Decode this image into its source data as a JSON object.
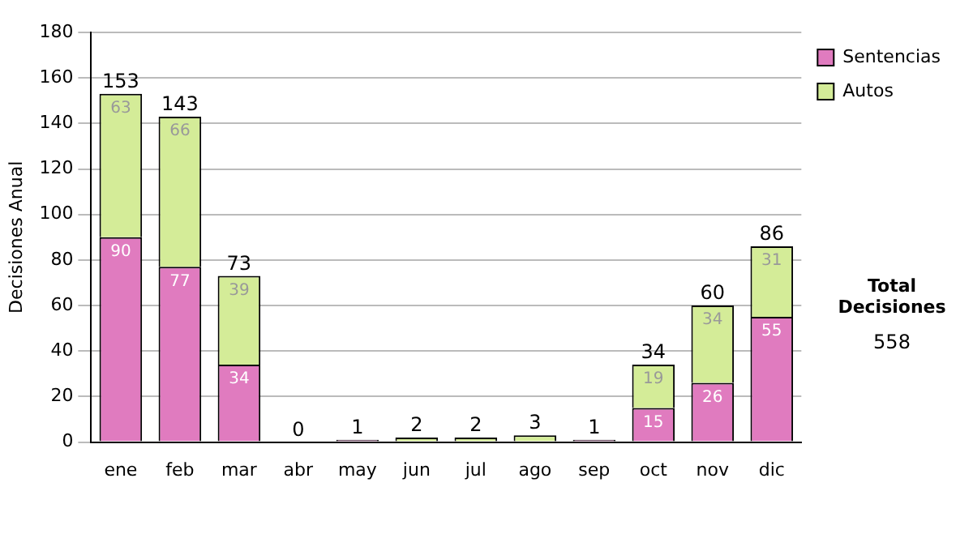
{
  "chart_data": {
    "type": "bar",
    "stacked": true,
    "ylabel": "Decisiones Anual",
    "categories": [
      "ene",
      "feb",
      "mar",
      "abr",
      "may",
      "jun",
      "jul",
      "ago",
      "sep",
      "oct",
      "nov",
      "dic"
    ],
    "series": [
      {
        "name": "Sentencias",
        "color": "#e07bbf",
        "values": [
          90,
          77,
          34,
          0,
          1,
          0,
          0,
          0,
          1,
          15,
          26,
          55
        ],
        "value_labels": [
          "90",
          "77",
          "34",
          null,
          null,
          null,
          null,
          null,
          null,
          "15",
          "26",
          "55"
        ]
      },
      {
        "name": "Autos",
        "color": "#d4ec98",
        "values": [
          63,
          66,
          39,
          0,
          0,
          2,
          2,
          3,
          0,
          19,
          34,
          31
        ],
        "value_labels": [
          "63",
          "66",
          "39",
          null,
          null,
          null,
          null,
          null,
          null,
          "19",
          "34",
          "31"
        ]
      }
    ],
    "totals": [
      "153",
      "143",
      "73",
      "0",
      "1",
      "2",
      "2",
      "3",
      "1",
      "34",
      "60",
      "86"
    ],
    "ylim": [
      0,
      180
    ],
    "yticks": [
      0,
      20,
      40,
      60,
      80,
      100,
      120,
      140,
      160,
      180
    ],
    "grid": "y",
    "legend": "right",
    "annotations": [
      "Total Decisiones",
      "558"
    ]
  }
}
